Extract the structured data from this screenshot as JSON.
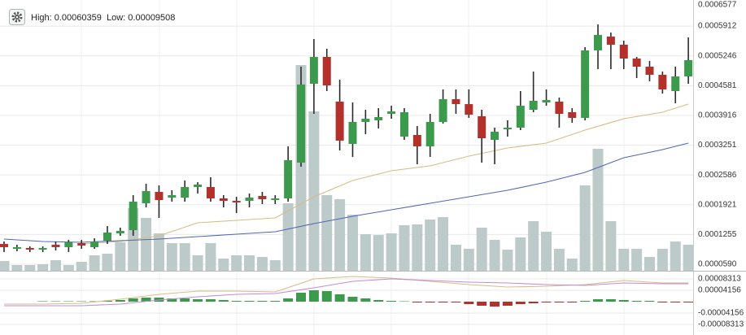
{
  "chart_data": [
    {
      "type": "candlestick",
      "info_high": "High: 0.00060359",
      "info_low": "Low: 0.00009508",
      "ylim": [
        4.45e-05,
        0.0006577
      ],
      "yticks": [
        0.0006577,
        0.0005912,
        0.0005246,
        0.0004581,
        0.0003916,
        0.0003251,
        0.0002586,
        0.0001921,
        0.0001255,
        {
          "value": 5.9e-05,
          "label": "0.0000590"
        }
      ],
      "grid": true,
      "up_color": "#3b9a4b",
      "down_color": "#b4312b",
      "wick_color": "#2b2b2b",
      "open": [
        0.0001044,
        9.35e-05,
        9.53e-05,
        9.17e-05,
        0.0001026,
        9.72e-05,
        0.0001062,
        9.72e-05,
        0.0001117,
        0.000128,
        0.0001353,
        0.0001953,
        0.0002207,
        0.000208,
        0.000208,
        0.0002316,
        0.0002316,
        0.0002062,
        0.0002007,
        0.0002007,
        0.0002116,
        0.0002025,
        0.0002062,
        0.0002861,
        0.0004624,
        0.0005223,
        0.0004224,
        0.0003279,
        0.000377,
        0.0003806,
        0.0003951,
        0.0003443,
        0.0003479,
        0.0003225,
        0.000377,
        0.0004279,
        0.0004169,
        0.0003897,
        0.000337,
        0.0003606,
        0.0003643,
        0.0004042,
        0.0004206,
        0.0004224,
        0.0003988,
        0.0003861,
        0.0005369,
        0.0005678,
        0.0005496,
        0.0005187,
        0.0005005,
        0.0004824,
        0.000446,
        0.0004787
      ],
      "high": [
        0.0001099,
        0.0001026,
        9.9e-05,
        9.9e-05,
        0.0001099,
        0.0001135,
        0.0001135,
        0.0001171,
        0.0001444,
        0.0001408,
        0.0002134,
        0.0002389,
        0.0002352,
        0.0002243,
        0.0002462,
        0.0002425,
        0.0002534,
        0.0002134,
        0.0002098,
        0.0002171,
        0.0002207,
        0.0002134,
        0.0003225,
        0.0005005,
        0.0005623,
        0.0005405,
        0.0004715,
        0.0004206,
        0.0004042,
        0.0004079,
        0.0004133,
        0.0004079,
        0.0003679,
        0.0003951,
        0.0004497,
        0.0004497,
        0.0004497,
        0.0004042,
        0.0003643,
        0.0003806,
        0.000446,
        0.0004896,
        0.0004497,
        0.0004315,
        0.0004079,
        0.0005441,
        0.000595,
        0.0005768,
        0.0005587,
        0.0005223,
        0.0005133,
        0.0004896,
        0.0005005,
        0.0005659
      ],
      "low": [
        8.63e-05,
        8.81e-05,
        8.63e-05,
        8.63e-05,
        8.99e-05,
        8.63e-05,
        9.35e-05,
        9.35e-05,
        0.0001044,
        0.0001226,
        0.0001226,
        0.0001862,
        0.0001626,
        0.0001989,
        0.0001989,
        0.0002171,
        0.0001989,
        0.0001862,
        0.0001735,
        0.0001862,
        0.0001935,
        0.0001935,
        0.0001989,
        0.000277,
        0.0003951,
        0.000446,
        0.0003134,
        0.0002988,
        0.0003497,
        0.0003624,
        0.0003842,
        0.000337,
        0.0002825,
        0.0002988,
        0.0003733,
        0.0003951,
        0.0003861,
        0.0002861,
        0.0002825,
        0.0003443,
        0.0003588,
        0.0003988,
        0.0004133,
        0.0003643,
        0.0003752,
        0.0003806,
        0.0004951,
        0.0004951,
        0.0004951,
        0.0004751,
        0.0004678,
        0.0004406,
        0.0004188,
        0.0004624
      ],
      "close": [
        9.72e-05,
        9.72e-05,
        9.17e-05,
        9.53e-05,
        9.72e-05,
        0.0001081,
        0.0001008,
        0.0001099,
        0.0001299,
        0.0001335,
        0.0001989,
        0.0002225,
        0.0002025,
        0.0002134,
        0.0002316,
        0.0002371,
        0.0002062,
        0.0002007,
        0.0001971,
        0.000208,
        0.0002044,
        0.0002062,
        0.0002916,
        0.0004606,
        0.0005223,
        0.0004587,
        0.0003352,
        0.000377,
        0.0003842,
        0.0003879,
        0.0004006,
        0.0003988,
        0.0003225,
        0.000377,
        0.0004279,
        0.0004169,
        0.0003933,
        0.0003406,
        0.0003552,
        0.0003643,
        0.0004133,
        0.0004242,
        0.000426,
        0.0003951,
        0.0003861,
        0.0005369,
        0.0005714,
        0.0005496,
        0.0005187,
        0.0005005,
        0.0004824,
        0.0004497,
        0.0004787,
        0.0005151
      ],
      "volume_color": "#bccaca",
      "volume": [
        6.63e-05,
        5.72e-05,
        5.72e-05,
        5.9e-05,
        6.81e-05,
        5.72e-05,
        6.45e-05,
        7.9e-05,
        8.26e-05,
        0.0001081,
        0.0001844,
        0.0001626,
        0.000128,
        0.0001062,
        0.0001062,
        7.9e-05,
        0.0001062,
        7.17e-05,
        7.9e-05,
        7.9e-05,
        7.54e-05,
        6.81e-05,
        0.0001953,
        0.0005042,
        0.0004006,
        0.0002134,
        0.0002044,
        0.0001698,
        0.0001262,
        0.0001244,
        0.000128,
        0.0001462,
        0.000148,
        0.0001589,
        0.0001644,
        0.0001026,
        9.35e-05,
        0.0001408,
        0.0001135,
        9.17e-05,
        0.000119,
        0.0001553,
        0.0001317,
        9.35e-05,
        7.17e-05,
        0.0002352,
        0.000317,
        0.0001553,
        9.35e-05,
        9.35e-05,
        7.54e-05,
        9.35e-05,
        0.0001099,
        0.0001026
      ],
      "series": [
        {
          "color": "#d6bd86",
          "index": [
            6,
            9,
            12,
            15,
            18,
            21,
            24,
            27,
            30,
            33,
            36,
            39,
            42,
            45,
            48,
            51,
            53
          ],
          "values": [
            0.0001044,
            0.0001099,
            0.0001226,
            0.0001517,
            0.0001571,
            0.0001626,
            0.0002098,
            0.0002462,
            0.000268,
            0.0002789,
            0.0003007,
            0.0003188,
            0.0003297,
            0.0003588,
            0.0003842,
            0.0003988,
            0.0004169
          ]
        },
        {
          "color": "#5266b6",
          "index": [
            0,
            3,
            6,
            9,
            12,
            15,
            18,
            21,
            24,
            27,
            30,
            33,
            36,
            39,
            42,
            45,
            48,
            51,
            53
          ],
          "values": [
            0.0001153,
            0.0001099,
            0.0001081,
            0.0001117,
            0.0001153,
            0.0001208,
            0.0001262,
            0.0001317,
            0.0001499,
            0.0001662,
            0.0001807,
            0.0001953,
            0.0002098,
            0.0002243,
            0.0002425,
            0.0002643,
            0.000297,
            0.0003152,
            0.0003297
          ]
        }
      ]
    },
    {
      "type": "macd",
      "ylim": [
        -0.0001217,
        0.0001039
      ],
      "yticks": [
        8.313e-05,
        4.156e-05,
        -4.156e-05,
        -8.313e-05
      ],
      "up_color": "#3b9a4b",
      "down_color": "#b4312b",
      "histogram": [
        0,
        0,
        0,
        1.5e-06,
        1.5e-06,
        1.5e-06,
        1.5e-06,
        1.5e-06,
        3e-06,
        5.9e-06,
        1.19e-05,
        1.48e-05,
        1.48e-05,
        1.19e-05,
        1.19e-05,
        8.9e-06,
        8.9e-06,
        5.9e-06,
        3e-06,
        3e-06,
        3e-06,
        3e-06,
        1.19e-05,
        3.27e-05,
        4.16e-05,
        3.86e-05,
        2.67e-05,
        1.78e-05,
        1.19e-05,
        5.9e-06,
        3e-06,
        1.5e-06,
        -3e-06,
        -3e-06,
        -3e-06,
        -3e-06,
        -8.9e-06,
        -1.48e-05,
        -1.78e-05,
        -1.48e-05,
        -8.9e-06,
        -5.9e-06,
        -3e-06,
        -3e-06,
        -3e-06,
        3e-06,
        8.9e-06,
        8.9e-06,
        5.9e-06,
        3e-06,
        3e-06,
        -3e-06,
        -3e-06,
        -3e-06
      ],
      "series": [
        {
          "color": "#d6bd86",
          "index": [
            0,
            3,
            6,
            9,
            12,
            15,
            18,
            21,
            24,
            27,
            30,
            33,
            36,
            39,
            42,
            45,
            48,
            51,
            53
          ],
          "values": [
            -8.9e-06,
            -8.9e-06,
            -5.9e-06,
            8.9e-06,
            2.67e-05,
            3.86e-05,
            3.86e-05,
            3.56e-05,
            8.31e-05,
            9.2e-05,
            8.61e-05,
            7.42e-05,
            6.23e-05,
            5.34e-05,
            5.64e-05,
            6.23e-05,
            7.72e-05,
            6.83e-05,
            6.83e-05
          ]
        },
        {
          "color": "#c58bd6",
          "index": [
            0,
            3,
            6,
            9,
            12,
            15,
            18,
            21,
            24,
            27,
            30,
            33,
            36,
            39,
            42,
            45,
            48,
            51,
            53
          ],
          "values": [
            -1.48e-05,
            -1.48e-05,
            -1.48e-05,
            -8.9e-06,
            5.9e-06,
            1.78e-05,
            2.67e-05,
            2.97e-05,
            5.05e-05,
            7.42e-05,
            8.31e-05,
            7.72e-05,
            7.13e-05,
            6.83e-05,
            6.23e-05,
            5.94e-05,
            6.83e-05,
            6.53e-05,
            6.53e-05
          ]
        }
      ]
    }
  ]
}
